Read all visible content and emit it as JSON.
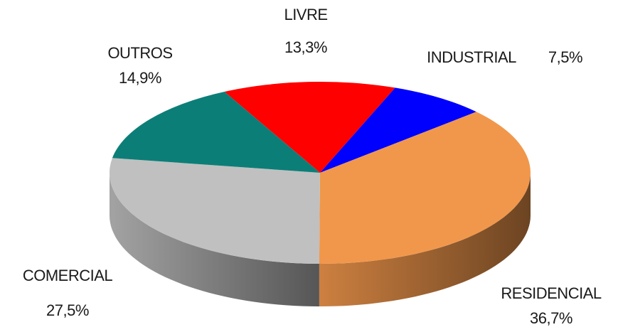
{
  "chart_data": {
    "type": "pie",
    "categories": [
      "LIVRE",
      "INDUSTRIAL",
      "RESIDENCIAL",
      "COMERCIAL",
      "OUTROS"
    ],
    "values": [
      13.3,
      7.5,
      36.7,
      27.5,
      14.9
    ],
    "value_labels": [
      "13,3%",
      "7,5%",
      "36,7%",
      "27,5%",
      "14,9%"
    ],
    "colors": [
      "#ff0000",
      "#0000ff",
      "#f1974b",
      "#c0c0c0",
      "#0c7e78"
    ]
  }
}
